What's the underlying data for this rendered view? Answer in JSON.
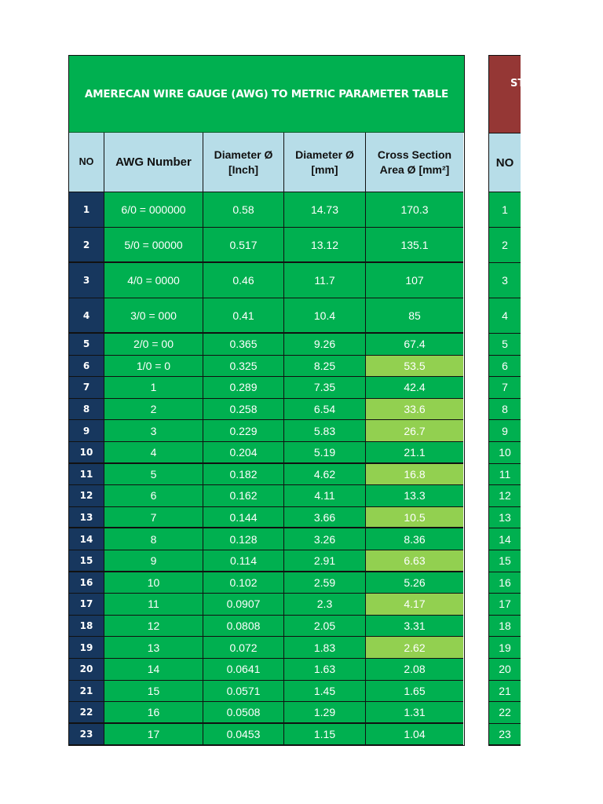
{
  "main_table": {
    "title": "AMERECAN WIRE GAUGE (AWG) TO METRIC PARAMETER TABLE",
    "title_bg": "#00b050",
    "headers": {
      "no": "NO",
      "awg": "AWG Number",
      "dia_inch_1": "Diameter Ø",
      "dia_inch_2": "[Inch]",
      "dia_mm_1": "Diameter Ø",
      "dia_mm_2": "[mm]",
      "area_1": "Cross Section",
      "area_2": "Area Ø [mm²]"
    },
    "rows": [
      {
        "no": "1",
        "awg": "6/0 = 000000",
        "dia_inch": "0.58",
        "dia_mm": "14.73",
        "area": "170.3"
      },
      {
        "no": "2",
        "awg": "5/0 = 00000",
        "dia_inch": "0.517",
        "dia_mm": "13.12",
        "area": "135.1"
      },
      {
        "no": "3",
        "awg": "4/0 = 0000",
        "dia_inch": "0.46",
        "dia_mm": "11.7",
        "area": "107"
      },
      {
        "no": "4",
        "awg": "3/0 = 000",
        "dia_inch": "0.41",
        "dia_mm": "10.4",
        "area": "85"
      },
      {
        "no": "5",
        "awg": "2/0 = 00",
        "dia_inch": "0.365",
        "dia_mm": "9.26",
        "area": "67.4"
      },
      {
        "no": "6",
        "awg": "1/0 = 0",
        "dia_inch": "0.325",
        "dia_mm": "8.25",
        "area": "53.5"
      },
      {
        "no": "7",
        "awg": "1",
        "dia_inch": "0.289",
        "dia_mm": "7.35",
        "area": "42.4"
      },
      {
        "no": "8",
        "awg": "2",
        "dia_inch": "0.258",
        "dia_mm": "6.54",
        "area": "33.6"
      },
      {
        "no": "9",
        "awg": "3",
        "dia_inch": "0.229",
        "dia_mm": "5.83",
        "area": "26.7"
      },
      {
        "no": "10",
        "awg": "4",
        "dia_inch": "0.204",
        "dia_mm": "5.19",
        "area": "21.1"
      },
      {
        "no": "11",
        "awg": "5",
        "dia_inch": "0.182",
        "dia_mm": "4.62",
        "area": "16.8"
      },
      {
        "no": "12",
        "awg": "6",
        "dia_inch": "0.162",
        "dia_mm": "4.11",
        "area": "13.3"
      },
      {
        "no": "13",
        "awg": "7",
        "dia_inch": "0.144",
        "dia_mm": "3.66",
        "area": "10.5"
      },
      {
        "no": "14",
        "awg": "8",
        "dia_inch": "0.128",
        "dia_mm": "3.26",
        "area": "8.36"
      },
      {
        "no": "15",
        "awg": "9",
        "dia_inch": "0.114",
        "dia_mm": "2.91",
        "area": "6.63"
      },
      {
        "no": "16",
        "awg": "10",
        "dia_inch": "0.102",
        "dia_mm": "2.59",
        "area": "5.26"
      },
      {
        "no": "17",
        "awg": "11",
        "dia_inch": "0.0907",
        "dia_mm": "2.3",
        "area": "4.17"
      },
      {
        "no": "18",
        "awg": "12",
        "dia_inch": "0.0808",
        "dia_mm": "2.05",
        "area": "3.31"
      },
      {
        "no": "19",
        "awg": "13",
        "dia_inch": "0.072",
        "dia_mm": "1.83",
        "area": "2.62"
      },
      {
        "no": "20",
        "awg": "14",
        "dia_inch": "0.0641",
        "dia_mm": "1.63",
        "area": "2.08"
      },
      {
        "no": "21",
        "awg": "15",
        "dia_inch": "0.0571",
        "dia_mm": "1.45",
        "area": "1.65"
      },
      {
        "no": "22",
        "awg": "16",
        "dia_inch": "0.0508",
        "dia_mm": "1.29",
        "area": "1.31"
      },
      {
        "no": "23",
        "awg": "17",
        "dia_inch": "0.0453",
        "dia_mm": "1.15",
        "area": "1.04"
      }
    ],
    "highlight_color": "#92d050"
  },
  "side_table": {
    "title_partial": "ST",
    "title_bg": "#953735",
    "header": "NO",
    "rows": [
      "1",
      "2",
      "3",
      "4",
      "5",
      "6",
      "7",
      "8",
      "9",
      "10",
      "11",
      "12",
      "13",
      "14",
      "15",
      "16",
      "17",
      "18",
      "19",
      "20",
      "21",
      "22",
      "23"
    ]
  }
}
